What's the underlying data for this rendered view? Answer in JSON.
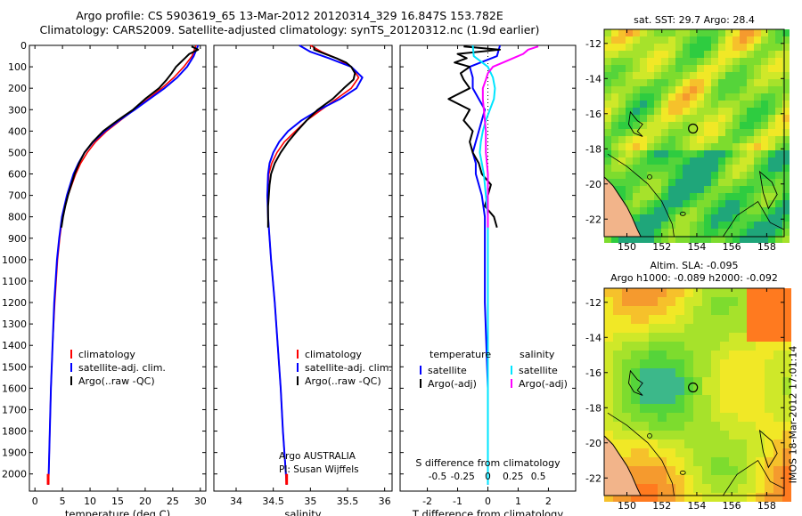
{
  "header": {
    "line1": "Argo profile: CS 5903619_65 13-Mar-2012 20120314_329 16.847S 153.782E",
    "line2": "Climatology: CARS2009. Satellite-adjusted climatology: synTS_20120312.nc (1.9d earlier)"
  },
  "maps": {
    "sst_title": "sat. SST: 29.7 Argo: 28.4",
    "sla_title_1": "Altim. SLA: -0.095",
    "sla_title_2": "Argo h1000: -0.089 h2000: -0.092",
    "lat_ticks": [
      "-12",
      "-14",
      "-16",
      "-18",
      "-20",
      "-22"
    ],
    "lon_ticks": [
      "150",
      "152",
      "154",
      "156",
      "158"
    ],
    "argo_marker": {
      "lon": 153.782,
      "lat": -16.847
    }
  },
  "footer": {
    "stamp": "IMOS 18-Mar-2012 17:01:14"
  },
  "colors": {
    "climatology": "#ff0000",
    "satellite": "#0000ff",
    "argo": "#000000",
    "sal_satellite": "#00e5ff",
    "sal_argo": "#ff00ff"
  },
  "chart_data": [
    {
      "type": "line",
      "title": "",
      "xlabel": "temperature (deg C)",
      "ylabel": "",
      "xlim": [
        -1,
        31
      ],
      "ylim": [
        2080,
        0
      ],
      "xticks": [
        0,
        5,
        10,
        15,
        20,
        25,
        30
      ],
      "yticks": [
        0,
        100,
        200,
        300,
        400,
        500,
        600,
        700,
        800,
        900,
        1000,
        1100,
        1200,
        1300,
        1400,
        1500,
        1600,
        1700,
        1800,
        1900,
        2000
      ],
      "legend": [
        "climatology",
        "satellite-adj. clim.",
        "Argo(..raw -QC)"
      ],
      "series": [
        {
          "name": "climatology",
          "depth": [
            0,
            50,
            100,
            150,
            200,
            250,
            300,
            350,
            400,
            450,
            500,
            550,
            600,
            700,
            800,
            900,
            1000,
            1200,
            1400,
            1600,
            1800,
            2000,
            2050
          ],
          "values": [
            29.2,
            28.5,
            27.0,
            25.2,
            23.0,
            20.5,
            18.0,
            15.5,
            13.0,
            11.0,
            9.5,
            8.3,
            7.4,
            6.0,
            5.0,
            4.5,
            4.1,
            3.6,
            3.2,
            2.9,
            2.7,
            2.5,
            2.4
          ]
        },
        {
          "name": "satellite-adj. clim.",
          "depth": [
            0,
            50,
            100,
            150,
            200,
            250,
            300,
            350,
            400,
            450,
            500,
            550,
            600,
            700,
            800,
            900,
            1000,
            1200,
            1400,
            1600,
            1800,
            2000,
            2050
          ],
          "values": [
            29.6,
            28.8,
            27.6,
            25.8,
            23.5,
            20.8,
            18.1,
            15.3,
            12.7,
            10.6,
            9.0,
            7.9,
            7.0,
            5.8,
            4.9,
            4.4,
            4.0,
            3.5,
            3.2,
            2.9,
            2.7,
            2.5,
            2.4
          ]
        },
        {
          "name": "Argo(..raw -QC)",
          "depth": [
            5,
            20,
            40,
            60,
            80,
            100,
            130,
            160,
            200,
            250,
            300,
            350,
            400,
            450,
            500,
            550,
            600,
            650,
            700,
            750,
            800,
            850
          ],
          "values": [
            28.4,
            29.6,
            28.0,
            27.2,
            26.4,
            25.6,
            24.8,
            23.9,
            22.5,
            20.0,
            17.8,
            15.0,
            12.4,
            10.5,
            9.0,
            8.0,
            7.2,
            6.6,
            6.0,
            5.5,
            5.1,
            4.8
          ]
        }
      ]
    },
    {
      "type": "line",
      "title": "",
      "xlabel": "salinity",
      "ylabel": "",
      "xlim": [
        33.7,
        36.1
      ],
      "ylim": [
        2080,
        0
      ],
      "xticks": [
        34,
        34.5,
        35,
        35.5,
        36
      ],
      "annotation_1": "Argo AUSTRALIA",
      "annotation_2": "PI: Susan Wijffels",
      "legend": [
        "climatology",
        "satellite-adj. clim.",
        "Argo(..raw -QC)"
      ],
      "series": [
        {
          "name": "climatology",
          "depth": [
            0,
            30,
            60,
            100,
            150,
            200,
            250,
            300,
            350,
            400,
            450,
            500,
            550,
            600,
            700,
            800,
            1000,
            1200,
            1400,
            1600,
            1800,
            2000,
            2050
          ],
          "values": [
            35.0,
            35.15,
            35.35,
            35.55,
            35.65,
            35.55,
            35.35,
            35.15,
            34.95,
            34.8,
            34.65,
            34.55,
            34.48,
            34.44,
            34.42,
            34.43,
            34.47,
            34.52,
            34.56,
            34.6,
            34.63,
            34.67,
            34.68
          ]
        },
        {
          "name": "satellite-adj. clim.",
          "depth": [
            0,
            30,
            60,
            100,
            150,
            200,
            250,
            300,
            350,
            400,
            450,
            500,
            550,
            600,
            700,
            800,
            1000,
            1200,
            1400,
            1600,
            1800,
            2000,
            2050
          ],
          "values": [
            34.85,
            35.0,
            35.25,
            35.55,
            35.7,
            35.62,
            35.4,
            35.12,
            34.88,
            34.7,
            34.58,
            34.5,
            34.45,
            34.43,
            34.42,
            34.43,
            34.47,
            34.52,
            34.56,
            34.6,
            34.63,
            34.67,
            34.68
          ]
        },
        {
          "name": "Argo(..raw -QC)",
          "depth": [
            5,
            20,
            40,
            60,
            80,
            100,
            130,
            160,
            200,
            250,
            300,
            350,
            400,
            450,
            500,
            550,
            600,
            650,
            700,
            750,
            800,
            850
          ],
          "values": [
            35.05,
            35.05,
            35.2,
            35.35,
            35.48,
            35.55,
            35.6,
            35.58,
            35.45,
            35.3,
            35.1,
            34.95,
            34.82,
            34.7,
            34.6,
            34.52,
            34.47,
            34.45,
            34.44,
            34.43,
            34.43,
            34.43
          ]
        }
      ]
    },
    {
      "type": "line",
      "title": "",
      "xlabel": "T difference from climatology",
      "xlabel_top": "S difference from climatology",
      "ylabel": "",
      "xlim": [
        -2.9,
        2.9
      ],
      "ylim": [
        2080,
        0
      ],
      "xticks": [
        -2,
        -1,
        0,
        1,
        2
      ],
      "s_ticks": [
        -0.5,
        -0.25,
        0,
        0.25,
        0.5
      ],
      "legend_headers": [
        "temperature",
        "salinity"
      ],
      "legend": [
        "satellite",
        "Argo(-adj)",
        "satellite",
        "Argo(-adj)"
      ],
      "series": [
        {
          "name": "T satellite",
          "depth": [
            0,
            50,
            100,
            150,
            200,
            250,
            300,
            350,
            400,
            450,
            500,
            550,
            600,
            700,
            800,
            1000,
            1200,
            1600,
            2000,
            2050
          ],
          "values": [
            0.4,
            0.3,
            -0.6,
            -0.5,
            -0.5,
            -0.3,
            -0.1,
            -0.2,
            -0.3,
            -0.4,
            -0.5,
            -0.4,
            -0.4,
            -0.2,
            -0.1,
            -0.1,
            -0.1,
            0,
            0,
            0
          ]
        },
        {
          "name": "T Argo(-adj)",
          "depth": [
            5,
            20,
            40,
            60,
            80,
            100,
            130,
            160,
            200,
            250,
            300,
            350,
            400,
            450,
            500,
            550,
            600,
            650,
            700,
            750,
            800,
            850
          ],
          "values": [
            -0.8,
            0.4,
            -1.0,
            -0.7,
            -1.1,
            -0.6,
            -0.9,
            -0.8,
            -0.6,
            -1.3,
            -0.6,
            -0.8,
            -0.5,
            -0.6,
            -0.5,
            -0.3,
            -0.2,
            0.1,
            0.0,
            -0.1,
            0.2,
            0.3
          ]
        },
        {
          "name": "S satellite",
          "depth": [
            0,
            50,
            100,
            150,
            200,
            250,
            300,
            350,
            400,
            450,
            500,
            550,
            600,
            700,
            800,
            1000,
            1200,
            1600,
            2000,
            2050
          ],
          "values": [
            -0.15,
            -0.14,
            0,
            0.05,
            0.07,
            0.06,
            0.02,
            -0.02,
            -0.05,
            -0.07,
            -0.08,
            -0.06,
            -0.04,
            -0.02,
            0,
            0,
            0,
            0,
            0,
            0
          ]
        },
        {
          "name": "S Argo(-adj)",
          "depth": [
            5,
            20,
            40,
            60,
            80,
            100,
            130,
            160,
            200,
            250,
            300,
            350,
            400,
            450,
            500,
            550,
            600,
            650,
            700,
            750,
            800,
            850
          ],
          "values": [
            0.5,
            0.4,
            0.35,
            0.25,
            0.15,
            0.05,
            0,
            -0.02,
            -0.05,
            -0.05,
            -0.04,
            -0.03,
            -0.02,
            -0.02,
            -0.02,
            -0.01,
            0,
            0,
            0,
            0,
            0,
            0
          ]
        }
      ]
    }
  ]
}
